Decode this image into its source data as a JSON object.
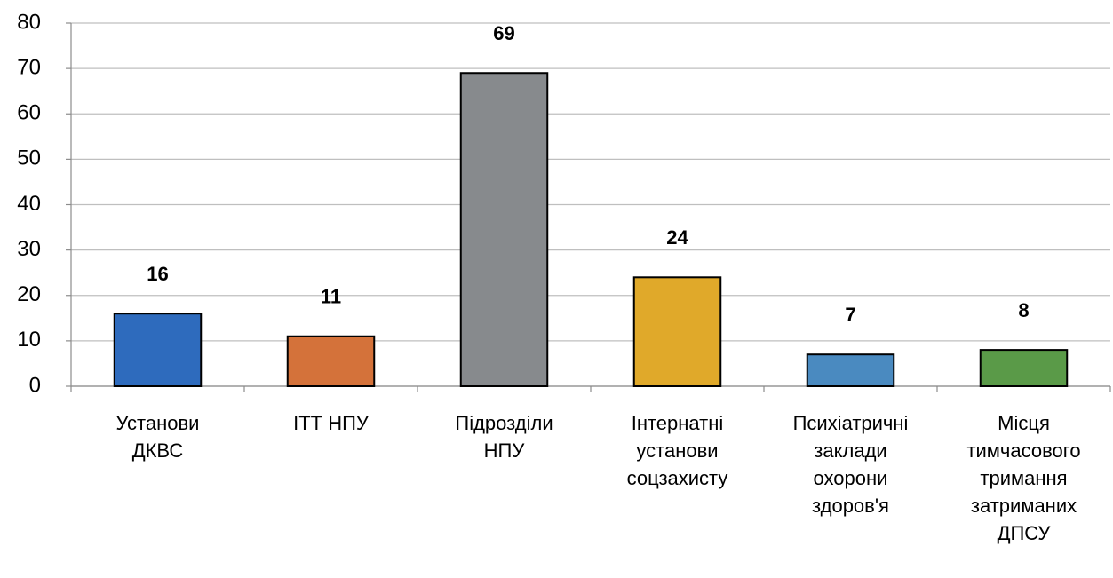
{
  "chart_data": {
    "type": "bar",
    "categories": [
      [
        "Установи",
        "ДКВС"
      ],
      [
        "ІТТ НПУ"
      ],
      [
        "Підрозділи",
        "НПУ"
      ],
      [
        "Інтернатні",
        "установи",
        "соцзахисту"
      ],
      [
        "Психіатричні",
        "заклади",
        "охорони",
        "здоров'я"
      ],
      [
        "Місця",
        "тимчасового",
        "тримання",
        "затриманих",
        "ДПСУ"
      ]
    ],
    "values": [
      16,
      11,
      69,
      24,
      7,
      8
    ],
    "colors": [
      "#2e6bbd",
      "#d4723a",
      "#878a8d",
      "#e0a92a",
      "#4a8ac0",
      "#5a9a48"
    ],
    "ylim": [
      0,
      80
    ],
    "yticks": [
      0,
      10,
      20,
      30,
      40,
      50,
      60,
      70,
      80
    ],
    "grid": true
  }
}
